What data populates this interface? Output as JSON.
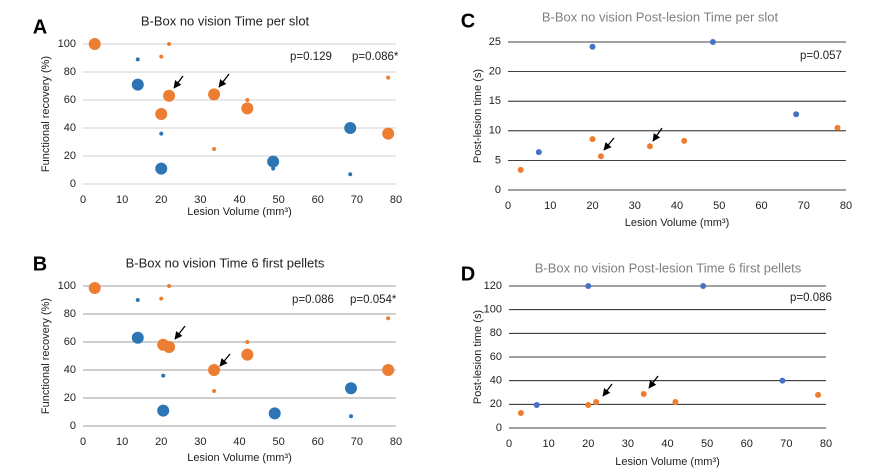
{
  "chart_data": [
    {
      "type": "scatter",
      "panel": "A",
      "title": "B-Box no vision Time per slot",
      "title_color": "#222222",
      "annotations": [
        "p=0.129",
        "p=0.086*"
      ],
      "x_label": "Lesion Volume (mm³)",
      "y_label": "Functional recovery (%)",
      "xlim": [
        0,
        80
      ],
      "xticks": [
        0,
        10,
        20,
        30,
        40,
        50,
        60,
        70,
        80
      ],
      "ylim": [
        0,
        100
      ],
      "yticks": [
        0,
        20,
        40,
        60,
        80,
        100
      ],
      "grid": true,
      "grid_color": "#bfbfbf",
      "series": [
        {
          "color": "#ed7d31",
          "marker_size": 6,
          "x": [
            3,
            20,
            22,
            33.5,
            42,
            78
          ],
          "values": [
            100,
            50,
            63,
            64,
            54,
            36
          ]
        },
        {
          "color": "#ed7d31",
          "marker_size": 2,
          "x": [
            20,
            22,
            33.5,
            42,
            78
          ],
          "values": [
            91,
            100,
            25,
            60,
            76
          ]
        },
        {
          "color": "#2e75b6",
          "marker_size": 6,
          "x": [
            14,
            20,
            48.6,
            68.3
          ],
          "values": [
            71,
            11,
            16,
            40
          ]
        },
        {
          "color": "#2e75b6",
          "marker_size": 2,
          "x": [
            14,
            20,
            48.6,
            68.3
          ],
          "values": [
            89,
            36,
            11,
            7
          ]
        }
      ]
    },
    {
      "type": "scatter",
      "panel": "B",
      "title": "B-Box no vision Time 6 first pellets",
      "title_color": "#222222",
      "annotations": [
        "p=0.086",
        "p=0.054*"
      ],
      "x_label": "Lesion Volume (mm³)",
      "y_label": "Functional recovery (%)",
      "xlim": [
        0,
        80
      ],
      "xticks": [
        0,
        10,
        20,
        30,
        40,
        50,
        60,
        70,
        80
      ],
      "ylim": [
        0,
        100
      ],
      "yticks": [
        0,
        20,
        40,
        60,
        80,
        100
      ],
      "grid": true,
      "grid_color": "#7f7f7f",
      "series": [
        {
          "color": "#ed7d31",
          "marker_size": 6,
          "x": [
            3,
            20.5,
            22,
            33.5,
            42,
            78
          ],
          "values": [
            98.6,
            58,
            56.4,
            40,
            51,
            40
          ]
        },
        {
          "color": "#ed7d31",
          "marker_size": 2,
          "x": [
            20,
            22,
            33.5,
            42,
            78
          ],
          "values": [
            91,
            100,
            25,
            60,
            77
          ]
        },
        {
          "color": "#2e75b6",
          "marker_size": 6,
          "x": [
            14,
            20.5,
            49,
            68.5
          ],
          "values": [
            63,
            11,
            9,
            27
          ]
        },
        {
          "color": "#2e75b6",
          "marker_size": 2,
          "x": [
            14,
            20.5,
            68.5
          ],
          "values": [
            90,
            36,
            7
          ]
        }
      ]
    },
    {
      "type": "scatter",
      "panel": "C",
      "title": "B-Box no vision Post-lesion Time per slot",
      "title_color": "#7f7f7f",
      "annotations": [
        "p=0.057"
      ],
      "x_label": "Lesion Volume (mm³)",
      "y_label": "Post-lesion time (s)",
      "xlim": [
        0,
        80
      ],
      "xticks": [
        0,
        10,
        20,
        30,
        40,
        50,
        60,
        70,
        80
      ],
      "ylim": [
        0,
        25
      ],
      "yticks": [
        0,
        5,
        10,
        15,
        20,
        25
      ],
      "grid": true,
      "grid_color": "#000000",
      "series": [
        {
          "color": "#ed7d31",
          "marker_size": 3,
          "x": [
            3,
            20,
            22,
            33.6,
            41.7,
            78
          ],
          "values": [
            3.4,
            8.6,
            5.7,
            7.4,
            8.3,
            10.5
          ]
        },
        {
          "color": "#4472c4",
          "marker_size": 3,
          "x": [
            7.3,
            20,
            48.5,
            68.2
          ],
          "values": [
            6.4,
            24.2,
            25,
            12.8
          ]
        }
      ]
    },
    {
      "type": "scatter",
      "panel": "D",
      "title": "B-Box no vision Post-lesion Time 6 first pellets",
      "title_color": "#7f7f7f",
      "annotations": [
        "p=0.086"
      ],
      "x_label": "Lesion Volume (mm³)",
      "y_label": "Post-lesion time (s)",
      "xlim": [
        0,
        80
      ],
      "xticks": [
        0,
        10,
        20,
        30,
        40,
        50,
        60,
        70,
        80
      ],
      "ylim": [
        0,
        120
      ],
      "yticks": [
        0,
        20,
        40,
        60,
        80,
        100,
        120
      ],
      "grid": true,
      "grid_color": "#000000",
      "series": [
        {
          "color": "#ed7d31",
          "marker_size": 3,
          "x": [
            3,
            20,
            22,
            34,
            42,
            78
          ],
          "values": [
            12.7,
            19.4,
            22,
            28.7,
            22,
            28
          ]
        },
        {
          "color": "#4472c4",
          "marker_size": 3,
          "x": [
            7,
            20,
            49,
            69
          ],
          "values": [
            19.4,
            120,
            120,
            40
          ]
        }
      ]
    }
  ]
}
